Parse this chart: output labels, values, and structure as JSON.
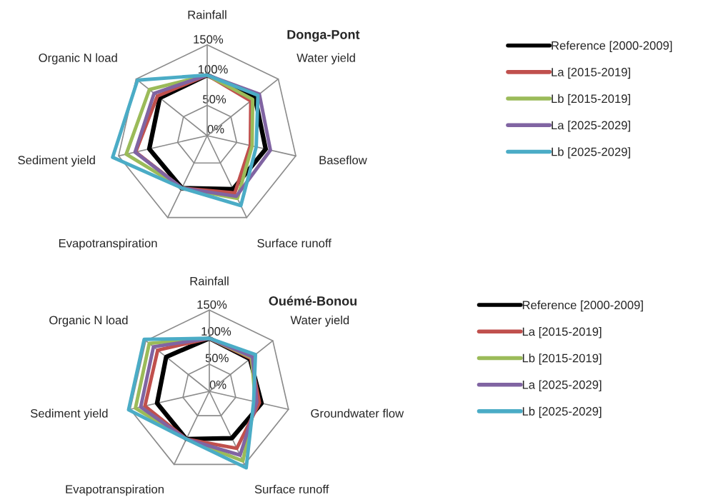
{
  "chart_data": [
    {
      "type": "radar",
      "title": "Donga-Pont",
      "categories": [
        "Rainfall",
        "Water yield",
        "Baseflow",
        "Surface runoff",
        "Evapotranspiration",
        "Sediment yield",
        "Organic N load"
      ],
      "ylim": [
        0,
        165
      ],
      "yticks": [
        {
          "value": 0,
          "label": "0%"
        },
        {
          "value": 50,
          "label": "50%"
        },
        {
          "value": 100,
          "label": "100%"
        },
        {
          "value": 150,
          "label": "150%"
        }
      ],
      "grid": true,
      "legend": "right",
      "marker": "none",
      "line_style": "solid",
      "series": [
        {
          "name": "Reference [2000-2009]",
          "color": "#000000",
          "values": [
            100,
            101,
            99,
            98,
            96,
            98,
            100
          ]
        },
        {
          "name": "La [2015-2019]",
          "color": "#c0504d",
          "values": [
            100,
            92,
            73,
            105,
            96,
            121,
            105
          ]
        },
        {
          "name": "Lb [2015-2019]",
          "color": "#9bbb59",
          "values": [
            100,
            96,
            76,
            115,
            96,
            137,
            122
          ]
        },
        {
          "name": "La [2025-2029]",
          "color": "#8064a2",
          "values": [
            100,
            110,
            107,
            111,
            96,
            122,
            112
          ]
        },
        {
          "name": "Lb [2025-2029]",
          "color": "#4bacc6",
          "values": [
            100,
            107,
            83,
            128,
            96,
            160,
            147
          ]
        }
      ]
    },
    {
      "type": "radar",
      "title": "Ouémé-Bonou",
      "categories": [
        "Rainfall",
        "Water yield",
        "Groundwater flow",
        "Surface runoff",
        "Evapotranspiration",
        "Sediment yield",
        "Organic N load"
      ],
      "ylim": [
        0,
        165
      ],
      "yticks": [
        {
          "value": 0,
          "label": "0%"
        },
        {
          "value": 50,
          "label": "50%"
        },
        {
          "value": 100,
          "label": "100%"
        },
        {
          "value": 150,
          "label": "150%"
        }
      ],
      "grid": true,
      "legend": "right",
      "marker": "none",
      "line_style": "solid",
      "series": [
        {
          "name": "Reference [2000-2009]",
          "color": "#000000",
          "values": [
            98,
            96,
            99,
            96,
            98,
            99,
            102
          ]
        },
        {
          "name": "La [2015-2019]",
          "color": "#c0504d",
          "values": [
            98,
            98,
            95,
            117,
            98,
            122,
            122
          ]
        },
        {
          "name": "Lb [2015-2019]",
          "color": "#9bbb59",
          "values": [
            98,
            100,
            87,
            143,
            98,
            140,
            142
          ]
        },
        {
          "name": "La [2025-2029]",
          "color": "#8064a2",
          "values": [
            98,
            102,
            90,
            131,
            98,
            130,
            132
          ]
        },
        {
          "name": "Lb [2025-2029]",
          "color": "#4bacc6",
          "values": [
            98,
            109,
            84,
            157,
            98,
            153,
            154
          ]
        }
      ]
    }
  ]
}
